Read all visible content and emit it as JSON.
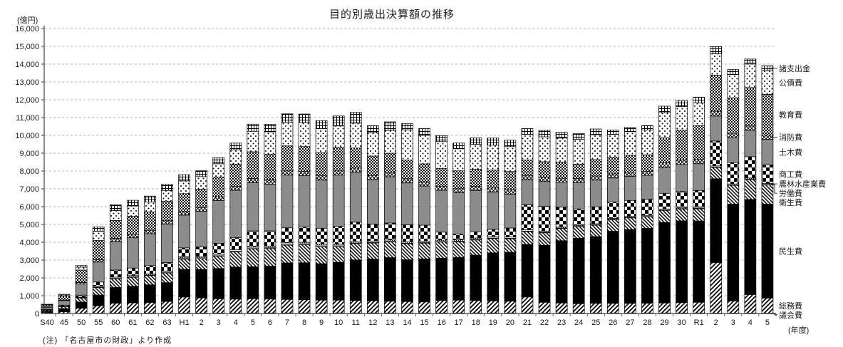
{
  "title": "目的別歳出決算額の推移",
  "y_axis_unit": "(億円)",
  "x_axis_unit": "(年度)",
  "note": "(注) 「名古屋市の財政」より作成",
  "chart_data": {
    "type": "bar",
    "variant": "stacked",
    "title": "目的別歳出決算額の推移",
    "xlabel": "(年度)",
    "ylabel": "(億円)",
    "ylim": [
      0,
      16000
    ],
    "ytick_step": 1000,
    "grid": "horizontal-dashed",
    "legend_position": "right",
    "y_ticks": [
      "0",
      "1,000",
      "2,000",
      "3,000",
      "4,000",
      "5,000",
      "6,000",
      "7,000",
      "8,000",
      "9,000",
      "10,000",
      "11,000",
      "12,000",
      "13,000",
      "14,000",
      "15,000",
      "16,000"
    ],
    "categories": [
      "S40",
      "45",
      "50",
      "55",
      "60",
      "61",
      "62",
      "63",
      "H1",
      "2",
      "3",
      "4",
      "5",
      "6",
      "7",
      "8",
      "9",
      "10",
      "11",
      "12",
      "13",
      "14",
      "15",
      "16",
      "17",
      "18",
      "19",
      "20",
      "21",
      "22",
      "23",
      "24",
      "25",
      "26",
      "27",
      "28",
      "29",
      "30",
      "R1",
      "2",
      "3",
      "4",
      "5"
    ],
    "series": [
      {
        "key": "gikai",
        "label": "議会費",
        "pattern": "white",
        "values": [
          5,
          8,
          12,
          18,
          22,
          22,
          23,
          24,
          25,
          26,
          27,
          28,
          30,
          30,
          30,
          30,
          30,
          30,
          30,
          30,
          30,
          30,
          30,
          30,
          30,
          30,
          30,
          30,
          30,
          30,
          30,
          30,
          30,
          30,
          30,
          30,
          30,
          30,
          30,
          25,
          25,
          25,
          25
        ]
      },
      {
        "key": "soumu",
        "label": "総務費",
        "pattern": "hatch-fwd",
        "values": [
          40,
          90,
          290,
          420,
          560,
          580,
          600,
          650,
          900,
          850,
          800,
          780,
          800,
          780,
          760,
          740,
          720,
          720,
          700,
          680,
          660,
          640,
          620,
          700,
          720,
          700,
          680,
          660,
          900,
          600,
          560,
          520,
          540,
          540,
          540,
          550,
          560,
          580,
          600,
          2840,
          680,
          1040,
          840
        ]
      },
      {
        "key": "minsei",
        "label": "民生費",
        "pattern": "black",
        "values": [
          90,
          180,
          340,
          600,
          880,
          930,
          990,
          1060,
          1560,
          1600,
          1700,
          1800,
          1800,
          1850,
          2050,
          2080,
          2050,
          2120,
          2280,
          2350,
          2450,
          2350,
          2420,
          2380,
          2400,
          2550,
          2700,
          2750,
          2950,
          3200,
          3500,
          3680,
          3750,
          4050,
          4150,
          4200,
          4520,
          4600,
          4570,
          4700,
          5440,
          5340,
          5280
        ]
      },
      {
        "key": "eisei",
        "label": "衛生費",
        "pattern": "hatch-back",
        "values": [
          50,
          100,
          230,
          420,
          480,
          500,
          520,
          540,
          560,
          600,
          700,
          850,
          1000,
          1000,
          1000,
          1020,
          950,
          880,
          920,
          900,
          880,
          900,
          880,
          900,
          880,
          850,
          800,
          760,
          720,
          700,
          680,
          640,
          640,
          640,
          650,
          650,
          680,
          660,
          680,
          640,
          1050,
          1120,
          1080
        ]
      },
      {
        "key": "roudou",
        "label": "労働費",
        "pattern": "white",
        "values": [
          5,
          10,
          20,
          30,
          30,
          30,
          30,
          40,
          50,
          50,
          50,
          50,
          50,
          50,
          50,
          50,
          50,
          50,
          30,
          30,
          30,
          30,
          30,
          30,
          30,
          30,
          30,
          30,
          30,
          30,
          30,
          20,
          20,
          20,
          20,
          20,
          20,
          20,
          20,
          20,
          20,
          20,
          20
        ]
      },
      {
        "key": "nourin",
        "label": "農林水産業費",
        "pattern": "dots-fine",
        "values": [
          10,
          20,
          30,
          60,
          70,
          70,
          70,
          70,
          70,
          70,
          70,
          80,
          80,
          80,
          80,
          80,
          90,
          90,
          90,
          80,
          80,
          80,
          80,
          80,
          80,
          80,
          80,
          70,
          70,
          70,
          70,
          60,
          60,
          60,
          60,
          60,
          60,
          60,
          60,
          60,
          60,
          60,
          60
        ]
      },
      {
        "key": "shoukou",
        "label": "商工費",
        "pattern": "check-lg",
        "values": [
          30,
          60,
          110,
          220,
          400,
          420,
          450,
          480,
          520,
          540,
          600,
          680,
          880,
          850,
          840,
          850,
          900,
          1000,
          1080,
          950,
          950,
          950,
          900,
          450,
          320,
          350,
          400,
          500,
          1400,
          1400,
          1100,
          920,
          950,
          920,
          900,
          900,
          880,
          900,
          950,
          1400,
          1200,
          1200,
          1040
        ]
      },
      {
        "key": "doboku",
        "label": "土木費",
        "pattern": "gray",
        "values": [
          120,
          260,
          640,
          1120,
          1600,
          1700,
          1800,
          2150,
          1840,
          2000,
          2400,
          2650,
          2700,
          2620,
          2960,
          2900,
          2700,
          2880,
          2800,
          2500,
          2600,
          2350,
          2200,
          2350,
          2320,
          2320,
          2100,
          1900,
          1400,
          1380,
          1400,
          1480,
          1500,
          1350,
          1350,
          1350,
          1440,
          1520,
          1500,
          1400,
          1400,
          1480,
          1440
        ]
      },
      {
        "key": "shoubou",
        "label": "消防費",
        "pattern": "crosshatch",
        "values": [
          15,
          30,
          70,
          130,
          180,
          185,
          190,
          195,
          200,
          200,
          210,
          220,
          240,
          240,
          240,
          240,
          240,
          240,
          240,
          240,
          240,
          240,
          240,
          230,
          230,
          230,
          230,
          230,
          230,
          230,
          230,
          230,
          230,
          230,
          230,
          230,
          280,
          240,
          240,
          280,
          240,
          240,
          240
        ]
      },
      {
        "key": "kyouiku",
        "label": "教育費",
        "pattern": "check-sm",
        "values": [
          110,
          220,
          700,
          1080,
          1000,
          1020,
          1030,
          1100,
          1000,
          1050,
          1100,
          1250,
          1500,
          1450,
          1400,
          1380,
          1300,
          1320,
          1120,
          1080,
          1080,
          1040,
          1000,
          1000,
          1000,
          960,
          1000,
          1040,
          880,
          880,
          900,
          800,
          920,
          930,
          950,
          920,
          1400,
          1680,
          1900,
          2020,
          2000,
          2160,
          2280
        ]
      },
      {
        "key": "kousai",
        "label": "公債費",
        "pattern": "dots",
        "values": [
          25,
          60,
          160,
          520,
          560,
          580,
          560,
          600,
          720,
          700,
          750,
          800,
          1150,
          1250,
          1320,
          1350,
          1350,
          1200,
          1400,
          1300,
          1280,
          1700,
          1600,
          1500,
          1240,
          1400,
          1400,
          1400,
          1450,
          1400,
          1350,
          1400,
          1400,
          1290,
          1330,
          1400,
          1410,
          1330,
          1280,
          1200,
          1300,
          1320,
          1320
        ]
      },
      {
        "key": "shoshutsu",
        "label": "諸支出金",
        "pattern": "grid",
        "values": [
          20,
          40,
          90,
          250,
          320,
          320,
          330,
          340,
          350,
          330,
          340,
          380,
          400,
          420,
          480,
          480,
          450,
          560,
          600,
          400,
          480,
          360,
          380,
          340,
          320,
          360,
          400,
          360,
          320,
          360,
          330,
          320,
          320,
          240,
          240,
          240,
          360,
          330,
          320,
          400,
          285,
          280,
          280
        ]
      }
    ],
    "legend_labels_top_to_bottom": [
      "諸支出金",
      "公債費",
      "教育費",
      "消防費",
      "土木費",
      "商工費",
      "農林水産業費",
      "労働費",
      "衛生費",
      "民生費",
      "総務費",
      "議会費"
    ]
  },
  "colors": {
    "bar_gray": "#8c8c8c",
    "bar_black": "#000000",
    "grid_line": "#b3b3b3",
    "axis": "#404040"
  }
}
